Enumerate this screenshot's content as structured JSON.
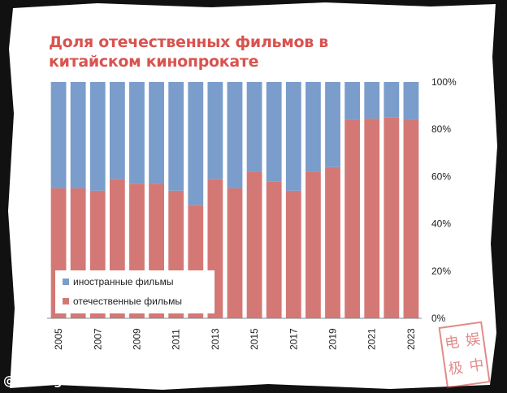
{
  "title": "Доля отечественных фильмов в китайском кинопрокате",
  "watermark": "@chinogram",
  "stamp": {
    "chars": [
      "电",
      "娱",
      "极",
      "中"
    ],
    "color": "#c9302c"
  },
  "colors": {
    "domestic": "#d47876",
    "foreign": "#7a9dcb",
    "title": "#d9534f"
  },
  "chart_data": {
    "type": "bar",
    "stacked": true,
    "percent": true,
    "title": "Доля отечественных фильмов в китайском кинопрокате",
    "x": [
      2005,
      2006,
      2007,
      2008,
      2009,
      2010,
      2011,
      2012,
      2013,
      2014,
      2015,
      2016,
      2017,
      2018,
      2019,
      2020,
      2021,
      2022,
      2023
    ],
    "x_tick_labels": [
      "2005",
      "2007",
      "2009",
      "2011",
      "2013",
      "2015",
      "2017",
      "2019",
      "2021",
      "2023"
    ],
    "series": [
      {
        "name": "отечественные фильмы",
        "values": [
          55,
          55,
          54,
          59,
          57,
          57,
          54,
          48,
          59,
          55,
          62,
          58,
          54,
          62,
          64,
          84,
          84.5,
          85,
          84
        ]
      },
      {
        "name": "иностранные фильмы",
        "values": [
          45,
          45,
          46,
          41,
          43,
          43,
          46,
          52,
          41,
          45,
          38,
          42,
          46,
          38,
          36,
          16,
          15.5,
          15,
          16
        ]
      }
    ],
    "ylim": [
      0,
      100
    ],
    "y_ticks": [
      "0%",
      "20%",
      "40%",
      "60%",
      "80%",
      "100%"
    ],
    "y_axis_side": "right",
    "legend": [
      "иностранные фильмы",
      "отечественные фильмы"
    ],
    "legend_position": "bottom-left",
    "grid": false
  }
}
